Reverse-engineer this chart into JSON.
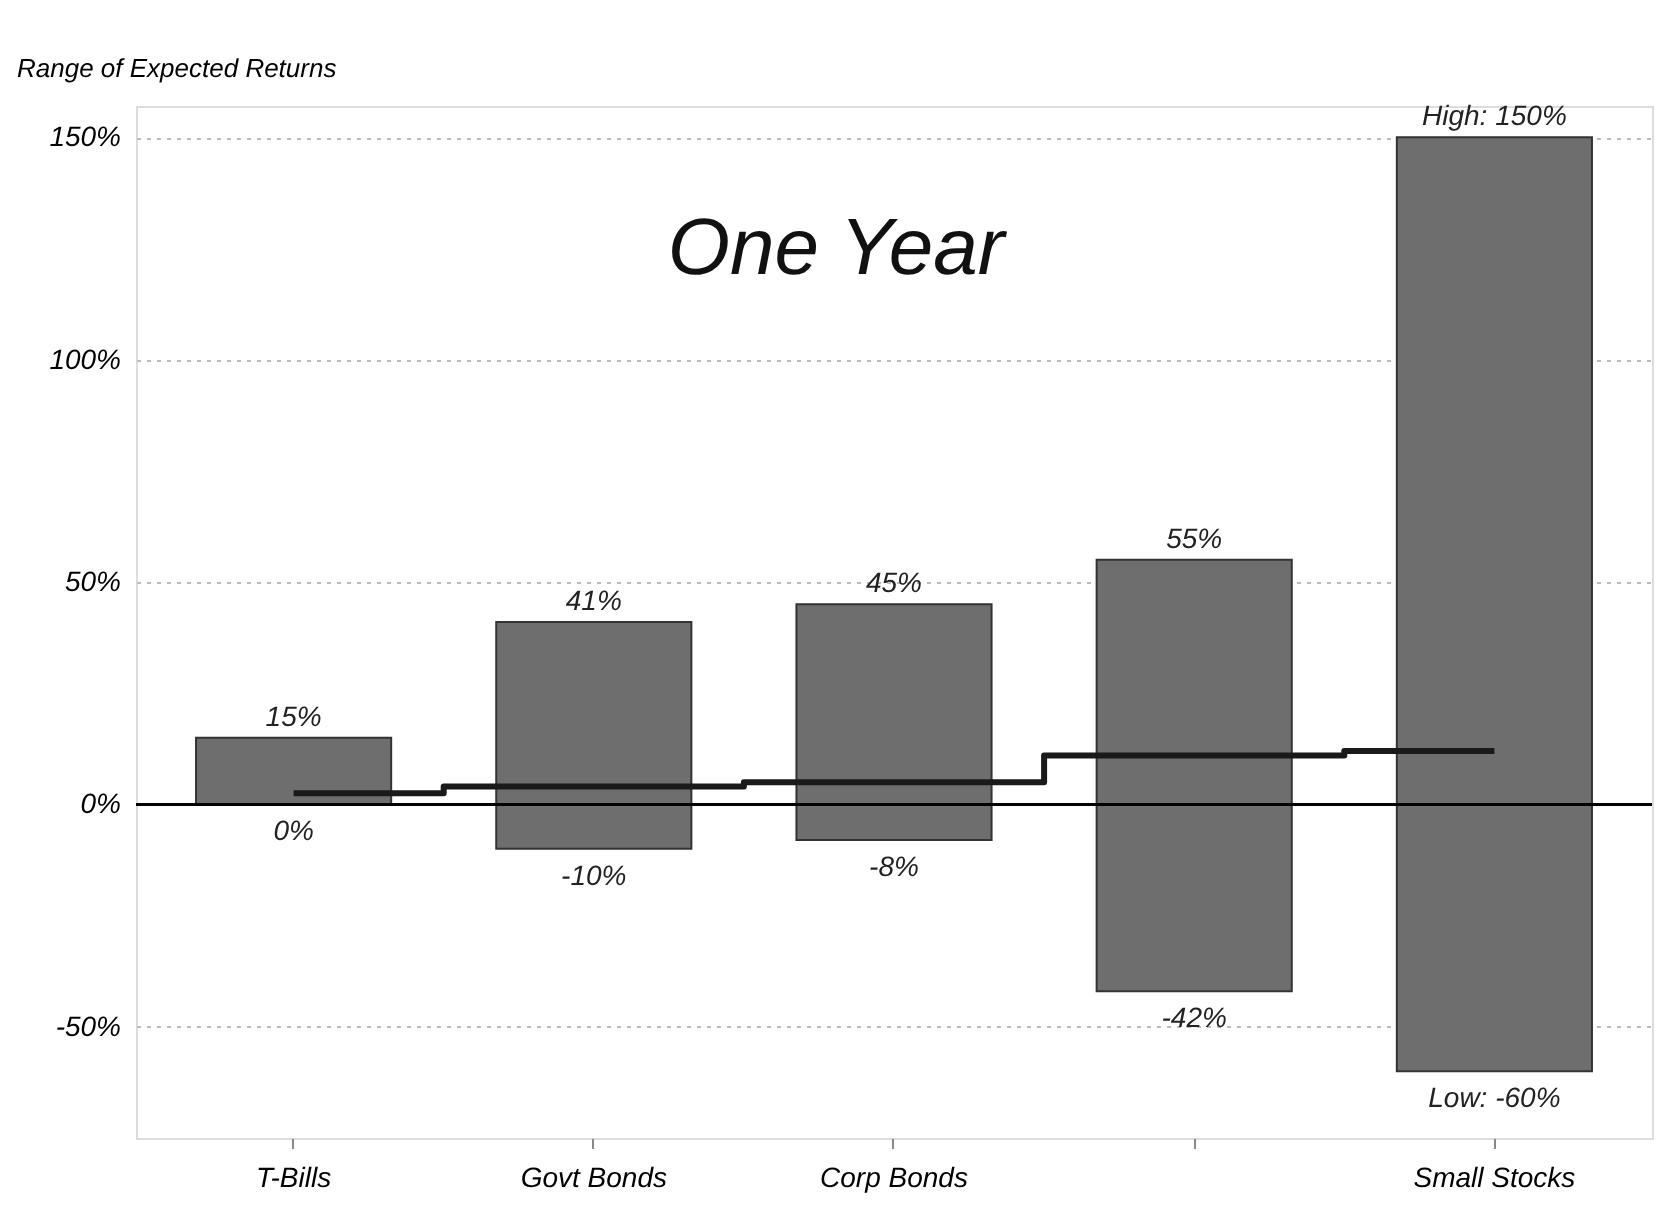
{
  "chart_data": {
    "type": "bar",
    "title": "One Year",
    "ylabel": "Range of Expected Returns",
    "categories": [
      "T-Bills",
      "Govt Bonds",
      "Corp Bonds",
      null,
      "Small Stocks"
    ],
    "series": [
      {
        "color": "#6e6e6e",
        "base": [
          0,
          -10,
          -8,
          -42,
          -60
        ],
        "values": [
          15,
          51,
          53,
          97,
          210
        ]
      },
      {
        "type": "step",
        "color": "#1a1a1a",
        "values": [
          2.5,
          4,
          5,
          11,
          12
        ]
      }
    ],
    "ylim": [
      -75,
      157
    ],
    "yticks": [
      {
        "value": -50,
        "label": "-50%"
      },
      {
        "value": 0,
        "label": "0%"
      },
      {
        "value": 50,
        "label": "50%"
      },
      {
        "value": 100,
        "label": "100%"
      },
      {
        "value": 150,
        "label": "150%"
      }
    ],
    "grid": "y",
    "ref_lines": [
      {
        "axis": "y",
        "value": 0,
        "color": "#000000"
      }
    ],
    "annotations": [
      {
        "text": "15%",
        "x": "T-Bills",
        "y": 15
      },
      {
        "text": "0%",
        "x": "T-Bills",
        "y": 0
      },
      {
        "text": "41%",
        "x": "Govt Bonds",
        "y": 41
      },
      {
        "text": "-10%",
        "x": "Govt Bonds",
        "y": -10
      },
      {
        "text": "45%",
        "x": "Corp Bonds",
        "y": 45
      },
      {
        "text": "-8%",
        "x": "Corp Bonds",
        "y": -8
      },
      {
        "text": "55%",
        "y": 55
      },
      {
        "text": "-42%",
        "y": -42
      },
      {
        "text": "High: 150%",
        "x": "Small Stocks",
        "y": 150
      },
      {
        "text": "Low: -60%",
        "x": "Small Stocks",
        "y": -60
      }
    ]
  }
}
